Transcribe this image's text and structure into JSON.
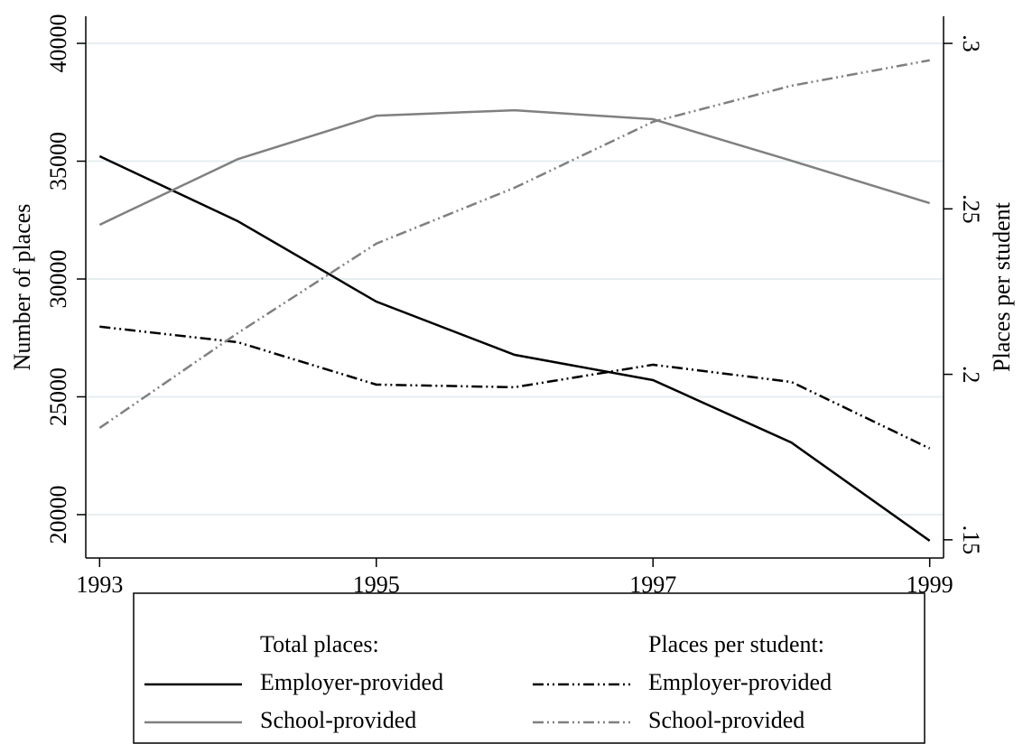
{
  "chart_data": {
    "type": "line",
    "x": [
      1993,
      1994,
      1995,
      1996,
      1997,
      1998,
      1999
    ],
    "xlim": [
      1992.9,
      1999.1
    ],
    "xticks": [
      1993,
      1995,
      1997,
      1999
    ],
    "ylabel": "Number of places",
    "ylim": [
      18160,
      41150
    ],
    "yticks": [
      20000,
      25000,
      30000,
      35000,
      40000
    ],
    "y2label": "Places per student",
    "y2lim": [
      0.1445,
      0.3082
    ],
    "y2ticks": [
      {
        "value": 0.15,
        "label": ".15"
      },
      {
        "value": 0.2,
        "label": ".2"
      },
      {
        "value": 0.25,
        "label": ".25"
      },
      {
        "value": 0.3,
        "label": ".3"
      }
    ],
    "grid": true,
    "legend": {
      "position": "bottom",
      "titles": [
        "Total places:",
        "Places per student:"
      ]
    },
    "series": [
      {
        "name": "Employer-provided",
        "color": "#000000",
        "style": "solid",
        "values": [
          35210,
          32450,
          29040,
          26780,
          25710,
          23060,
          18890
        ]
      },
      {
        "name": "School-provided",
        "color": "#808080",
        "style": "solid",
        "values": [
          32300,
          35090,
          36930,
          37160,
          36780,
          35020,
          33220
        ]
      },
      {
        "name": "Employer-provided",
        "color": "#000000",
        "style": "dashdotdot",
        "axis": "y2",
        "values": [
          0.2144,
          0.2097,
          0.1969,
          0.1961,
          0.2029,
          0.1977,
          0.1776
        ]
      },
      {
        "name": "School-provided",
        "color": "#808080",
        "style": "dashdotdot",
        "axis": "y2",
        "values": [
          0.1838,
          0.2125,
          0.2395,
          0.2564,
          0.2763,
          0.2872,
          0.2949
        ]
      }
    ]
  }
}
